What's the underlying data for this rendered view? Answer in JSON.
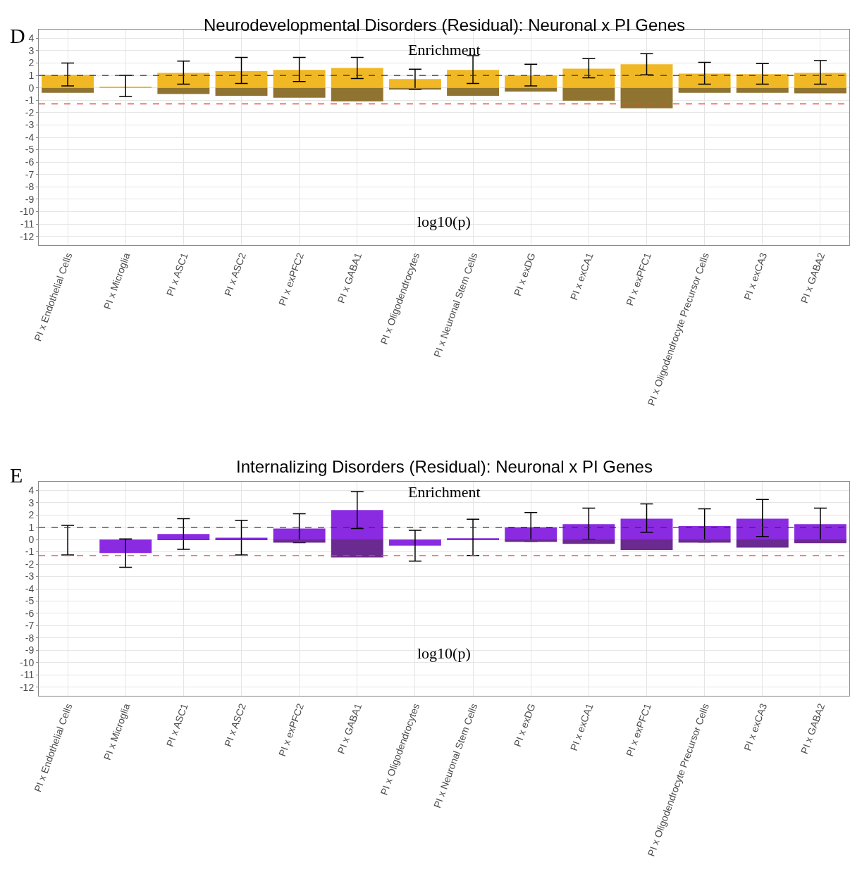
{
  "chart_data": [
    {
      "type": "bar",
      "title": "Neurodevelopmental Disorders (Residual): Neuronal x PI Genes",
      "annotations": [
        "D",
        "Enrichment",
        "log10(p)"
      ],
      "categories": [
        "PI x Endothelial Cells",
        "PI x Microglia",
        "PI x ASC1",
        "PI x ASC2",
        "PI x exPFC2",
        "PI x GABA1",
        "PI x Oligodendrocytes",
        "PI x Neuronal Stem Cells",
        "PI x exDG",
        "PI x exCA1",
        "PI x exPFC1",
        "PI x Oligodendrocyte Precursor Cells",
        "PI x exCA3",
        "PI x GABA2"
      ],
      "series": [
        {
          "color": "#f0b825",
          "values": [
            1.05,
            0.1,
            1.2,
            1.35,
            1.45,
            1.6,
            0.7,
            1.45,
            1.0,
            1.55,
            1.9,
            1.15,
            1.1,
            1.2
          ],
          "errors": [
            [
              0.15,
              2.0
            ],
            [
              -0.7,
              1.0
            ],
            [
              0.3,
              2.15
            ],
            [
              0.35,
              2.45
            ],
            [
              0.5,
              2.45
            ],
            [
              0.75,
              2.45
            ],
            [
              -0.15,
              1.5
            ],
            [
              0.35,
              2.6
            ],
            [
              0.15,
              1.9
            ],
            [
              0.8,
              2.35
            ],
            [
              1.05,
              2.75
            ],
            [
              0.3,
              2.05
            ],
            [
              0.3,
              1.95
            ],
            [
              0.3,
              2.2
            ]
          ]
        },
        {
          "color": "#8f7330",
          "values": [
            -0.4,
            0,
            -0.5,
            -0.65,
            -0.8,
            -1.1,
            -0.15,
            -0.65,
            -0.3,
            -1.05,
            -1.65,
            -0.4,
            -0.4,
            -0.45
          ]
        }
      ],
      "ylim": [
        -12.7,
        4.7
      ],
      "yticks": [
        -12,
        -11,
        -10,
        -9,
        -8,
        -7,
        -6,
        -5,
        -4,
        -3,
        -2,
        -1,
        0,
        1,
        2,
        3,
        4
      ],
      "grid": true,
      "stacked": true,
      "ref_lines": [
        {
          "axis": "y",
          "value": 1,
          "color": "#333333",
          "line_style": "dashed"
        },
        {
          "axis": "y",
          "value": -1.3,
          "color": "#f04a3a",
          "line_style": "dashed"
        }
      ]
    },
    {
      "type": "bar",
      "stacked": true,
      "title": "Internalizing Disorders (Residual): Neuronal x PI Genes",
      "annotations": [
        "E",
        "Enrichment",
        "log10(p)"
      ],
      "categories": [
        "PI x Endothelial Cells",
        "PI x Microglia",
        "PI x ASC1",
        "PI x ASC2",
        "PI x exPFC2",
        "PI x GABA1",
        "PI x Oligodendrocytes",
        "PI x Neuronal Stem Cells",
        "PI x exDG",
        "PI x exCA1",
        "PI x exPFC1",
        "PI x Oligodendrocyte Precursor Cells",
        "PI x exCA3",
        "PI x GABA2"
      ],
      "series": [
        {
          "color": "#8a2be2",
          "values": [
            0,
            -1.1,
            0.45,
            0.15,
            0.9,
            2.4,
            -0.5,
            0.1,
            1.0,
            1.25,
            1.7,
            1.1,
            1.7,
            1.25
          ],
          "errors": [
            [
              -1.25,
              1.15
            ],
            [
              -2.25,
              0.05
            ],
            [
              -0.8,
              1.7
            ],
            [
              -1.25,
              1.55
            ],
            [
              -0.25,
              2.1
            ],
            [
              0.9,
              3.9
            ],
            [
              -1.75,
              0.75
            ],
            [
              -1.3,
              1.65
            ],
            [
              -0.15,
              2.2
            ],
            [
              0.0,
              2.55
            ],
            [
              0.6,
              2.9
            ],
            [
              -0.2,
              2.5
            ],
            [
              0.25,
              3.25
            ],
            [
              -0.05,
              2.55
            ]
          ]
        },
        {
          "color": "#6a2a90",
          "values": [
            0,
            0,
            -0.05,
            -0.05,
            -0.25,
            -1.45,
            0,
            0,
            -0.2,
            -0.35,
            -0.85,
            -0.25,
            -0.65,
            -0.3
          ]
        }
      ],
      "ylim": [
        -12.7,
        4.7
      ],
      "yticks": [
        -12,
        -11,
        -10,
        -9,
        -8,
        -7,
        -6,
        -5,
        -4,
        -3,
        -2,
        -1,
        0,
        1,
        2,
        3,
        4
      ],
      "grid": true,
      "ref_lines": [
        {
          "axis": "y",
          "value": 1,
          "color": "#333333",
          "line_style": "dashed"
        },
        {
          "axis": "y",
          "value": -1.3,
          "color": "#f04a3a",
          "line_style": "dashed"
        }
      ]
    }
  ]
}
